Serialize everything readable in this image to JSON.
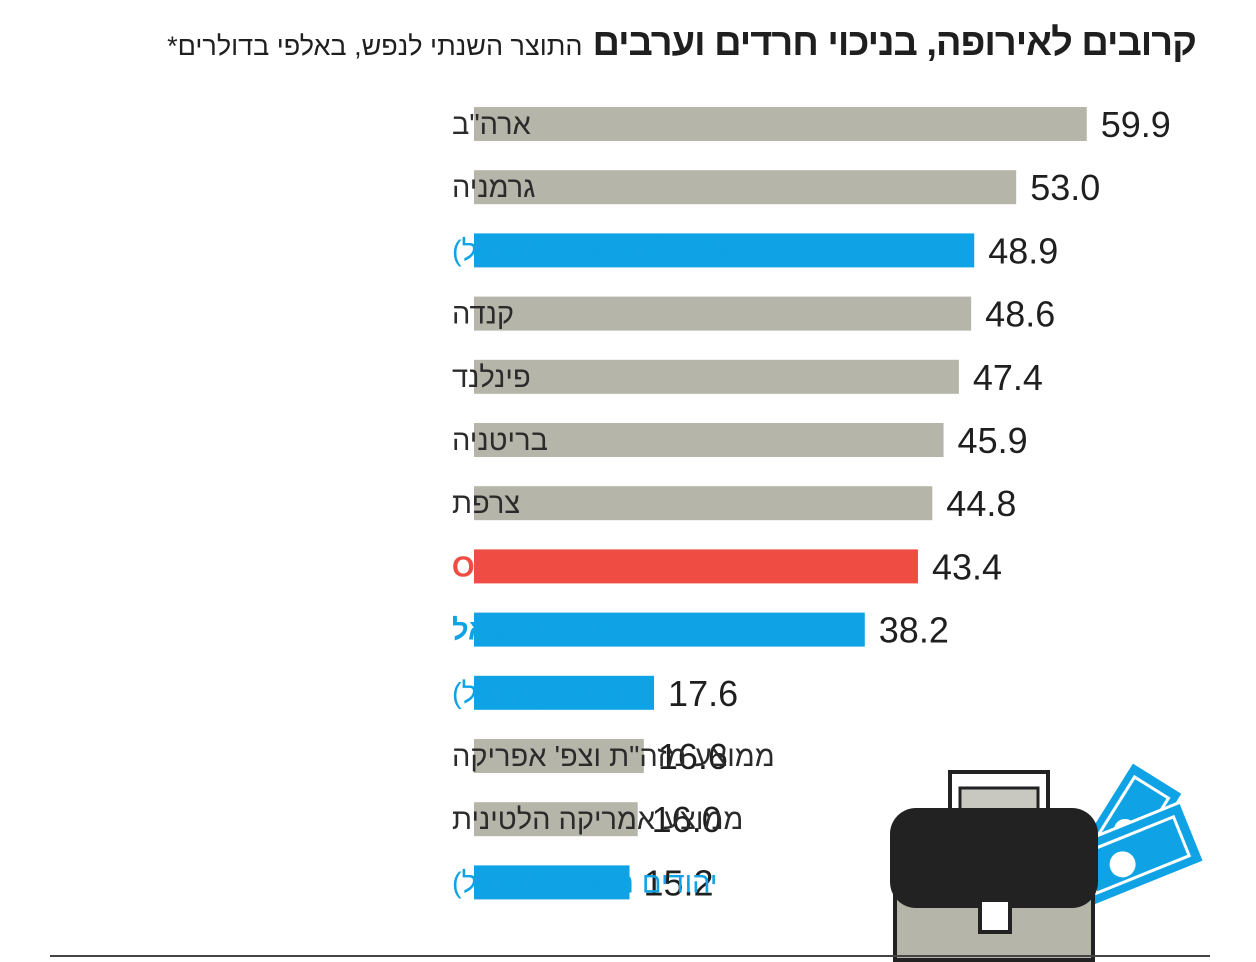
{
  "title": {
    "main": "קרובים לאירופה, בניכוי חרדים וערבים",
    "sub": "התוצר השנתי לנפש, באלפי בדולרים*"
  },
  "colors": {
    "gray": "#b5b5aa",
    "blue": "#0fa3e5",
    "red": "#ef4d44",
    "label_default": "#2b2b2b"
  },
  "chart_data": {
    "type": "bar",
    "orientation": "horizontal",
    "categories": [
      "ארה\"ב",
      "גרמניה",
      "יהודים לא חרדים (ישראל)",
      "קנדה",
      "פינלנד",
      "בריטניה",
      "צרפת",
      "ממוצע OECD",
      "ממוצע ישראל",
      "ערבים (ישראל)",
      "ממוצע מזה\"ת וצפ' אפריקה",
      "ממוצע אמריקה הלטינית",
      "יהודים חרדים (ישראל)"
    ],
    "values": [
      59.9,
      53.0,
      48.9,
      48.6,
      47.4,
      45.9,
      44.8,
      43.4,
      38.2,
      17.6,
      16.6,
      16.0,
      15.2
    ],
    "value_labels": [
      "59.9",
      "53.0",
      "48.9",
      "48.6",
      "47.4",
      "45.9",
      "44.8",
      "43.4",
      "38.2",
      "17.6",
      "16.6",
      "16.0",
      "15.2"
    ],
    "bar_colors": [
      "gray",
      "gray",
      "blue",
      "gray",
      "gray",
      "gray",
      "gray",
      "red",
      "blue",
      "blue",
      "gray",
      "gray",
      "blue"
    ],
    "label_colors": [
      "default",
      "default",
      "blue",
      "default",
      "default",
      "default",
      "default",
      "red",
      "blue",
      "blue",
      "default",
      "default",
      "blue"
    ],
    "label_bold": [
      false,
      false,
      false,
      false,
      false,
      false,
      false,
      true,
      true,
      false,
      false,
      false,
      false
    ],
    "xlim": [
      0,
      60
    ],
    "grid": false,
    "legend": "none"
  },
  "illustration": {
    "icon": "briefcase-with-money-icon"
  }
}
